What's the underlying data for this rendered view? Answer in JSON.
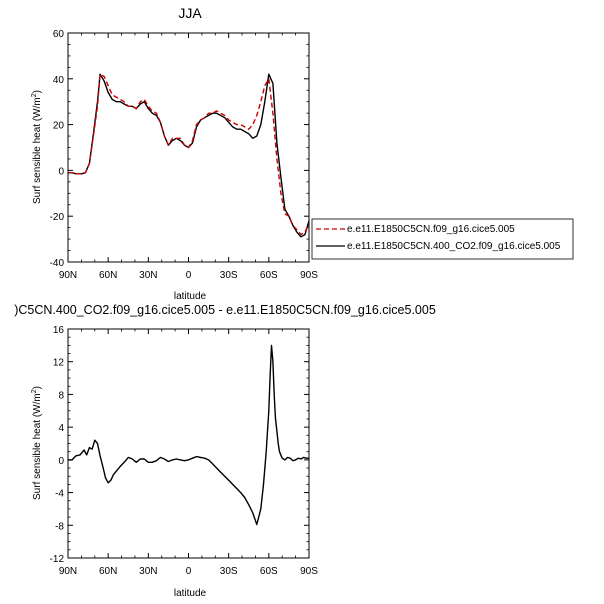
{
  "chart_data": [
    {
      "type": "line",
      "title": "JJA",
      "xlabel": "latitude",
      "ylabel": "Surf sensible heat (W/m",
      "ylabel_sup": "2",
      "ylabel_close": ")",
      "xlim": [
        90,
        -90
      ],
      "ylim": [
        -40,
        60
      ],
      "xticks": [
        90,
        60,
        30,
        0,
        -30,
        -60,
        -90
      ],
      "xtick_labels": [
        "90N",
        "60N",
        "30N",
        "0",
        "30S",
        "60S",
        "90S"
      ],
      "yticks": [
        -40,
        -20,
        0,
        20,
        40,
        60
      ],
      "ytick_labels": [
        "-40",
        "-20",
        "0",
        "20",
        "40",
        "60"
      ],
      "legend_position": "right",
      "series": [
        {
          "name": "e.e11.E1850C5CN.f09_g16.cice5.005",
          "color": "#cc0000",
          "dash": "dashed",
          "x": [
            90,
            87,
            84,
            80,
            77,
            74,
            71,
            68,
            66,
            63,
            60,
            57,
            54,
            51,
            48,
            45,
            42,
            39,
            36,
            33,
            30,
            27,
            24,
            21,
            18,
            15,
            12,
            9,
            6,
            3,
            0,
            -3,
            -6,
            -9,
            -12,
            -15,
            -18,
            -21,
            -24,
            -27,
            -30,
            -33,
            -36,
            -39,
            -42,
            -45,
            -48,
            -51,
            -54,
            -57,
            -60,
            -63,
            -66,
            -69,
            -72,
            -75,
            -78,
            -81,
            -84,
            -87,
            -90
          ],
          "y": [
            -1,
            -1,
            -1.5,
            -1.5,
            -1,
            3,
            15,
            28,
            42,
            41,
            37,
            33,
            32,
            31,
            30,
            28,
            28,
            27,
            30,
            31,
            28,
            26,
            25,
            21,
            15,
            11,
            14,
            14,
            14,
            11,
            10,
            13,
            20,
            22,
            23,
            25,
            25,
            26,
            25,
            24,
            22,
            21,
            20,
            20,
            19,
            18,
            20,
            24,
            30,
            37,
            40,
            25,
            5,
            -10,
            -19,
            -20,
            -24,
            -26,
            -28,
            -27,
            -23
          ]
        },
        {
          "name": "e.e11.E1850C5CN.400_CO2.f09_g16.cice5.005",
          "color": "#000000",
          "dash": "solid",
          "x": [
            90,
            87,
            84,
            80,
            77,
            74,
            71,
            68,
            66,
            63,
            60,
            57,
            54,
            51,
            48,
            45,
            42,
            39,
            36,
            33,
            30,
            27,
            24,
            21,
            18,
            15,
            12,
            9,
            6,
            3,
            0,
            -3,
            -6,
            -9,
            -12,
            -15,
            -18,
            -21,
            -24,
            -27,
            -30,
            -33,
            -36,
            -39,
            -42,
            -45,
            -48,
            -51,
            -54,
            -57,
            -60,
            -63,
            -66,
            -69,
            -72,
            -75,
            -78,
            -81,
            -84,
            -87,
            -90
          ],
          "y": [
            -1,
            -1,
            -1.5,
            -1.5,
            -1,
            3,
            16,
            30,
            42,
            39,
            34,
            31,
            30,
            30,
            29,
            28,
            28,
            27,
            29,
            30,
            27,
            25,
            24,
            21,
            15,
            11,
            13,
            14,
            13,
            11,
            10,
            12,
            19,
            22,
            23,
            24,
            25,
            25,
            24,
            23,
            21,
            19,
            18,
            18,
            17,
            16,
            14,
            15,
            20,
            30,
            42,
            38,
            12,
            -3,
            -17,
            -20,
            -24,
            -27,
            -29,
            -28,
            -22
          ]
        }
      ]
    },
    {
      "type": "line",
      "title": ")C5CN.400_CO2.f09_g16.cice5.005 - e.e11.E1850C5CN.f09_g16.cice5.005",
      "xlabel": "latitude",
      "ylabel": "Surf sensible heat (W/m",
      "ylabel_sup": "2",
      "ylabel_close": ")",
      "xlim": [
        90,
        -90
      ],
      "ylim": [
        -12,
        16
      ],
      "xticks": [
        90,
        60,
        30,
        0,
        -30,
        -60,
        -90
      ],
      "xtick_labels": [
        "90N",
        "60N",
        "30N",
        "0",
        "30S",
        "60S",
        "90S"
      ],
      "yticks": [
        -12,
        -8,
        -4,
        0,
        4,
        8,
        12,
        16
      ],
      "ytick_labels": [
        "-12",
        "-8",
        "-4",
        "0",
        "4",
        "8",
        "12",
        "16"
      ],
      "series": [
        {
          "color": "#000000",
          "dash": "solid",
          "x": [
            90,
            87,
            84,
            81,
            78,
            76,
            74,
            72,
            70,
            68,
            66,
            64,
            62,
            60,
            58,
            56,
            54,
            51,
            48,
            45,
            42,
            39,
            36,
            33,
            30,
            27,
            24,
            21,
            18,
            15,
            12,
            9,
            6,
            3,
            0,
            -3,
            -6,
            -9,
            -12,
            -15,
            -18,
            -21,
            -24,
            -27,
            -30,
            -33,
            -36,
            -39,
            -42,
            -45,
            -48,
            -51,
            -54,
            -56,
            -58,
            -60,
            -61,
            -62,
            -63,
            -64,
            -65,
            -66,
            -67,
            -68,
            -70,
            -72,
            -74,
            -76,
            -78,
            -80,
            -82,
            -84,
            -86,
            -88,
            -90
          ],
          "y": [
            0,
            0,
            0.5,
            0.6,
            1.2,
            0.6,
            1.5,
            1.3,
            2.4,
            2.0,
            0.5,
            -0.8,
            -2.2,
            -2.8,
            -2.5,
            -1.8,
            -1.4,
            -0.8,
            -0.3,
            0.3,
            0.1,
            -0.3,
            0.1,
            0.1,
            -0.3,
            -0.3,
            -0.1,
            0.3,
            0.1,
            -0.2,
            0,
            0.1,
            0,
            -0.1,
            0,
            0.2,
            0.4,
            0.3,
            0.2,
            0,
            -0.5,
            -1.0,
            -1.5,
            -2.0,
            -2.5,
            -3.0,
            -3.5,
            -4.0,
            -4.6,
            -5.5,
            -6.5,
            -7.9,
            -6.0,
            -3.0,
            1.0,
            6.0,
            10.5,
            14.0,
            12.0,
            8.0,
            5.0,
            3.5,
            2.0,
            1.0,
            0.2,
            0,
            0.3,
            0.2,
            -0.1,
            0,
            0.2,
            0.1,
            0.3,
            0.2,
            0.2
          ]
        }
      ]
    }
  ]
}
